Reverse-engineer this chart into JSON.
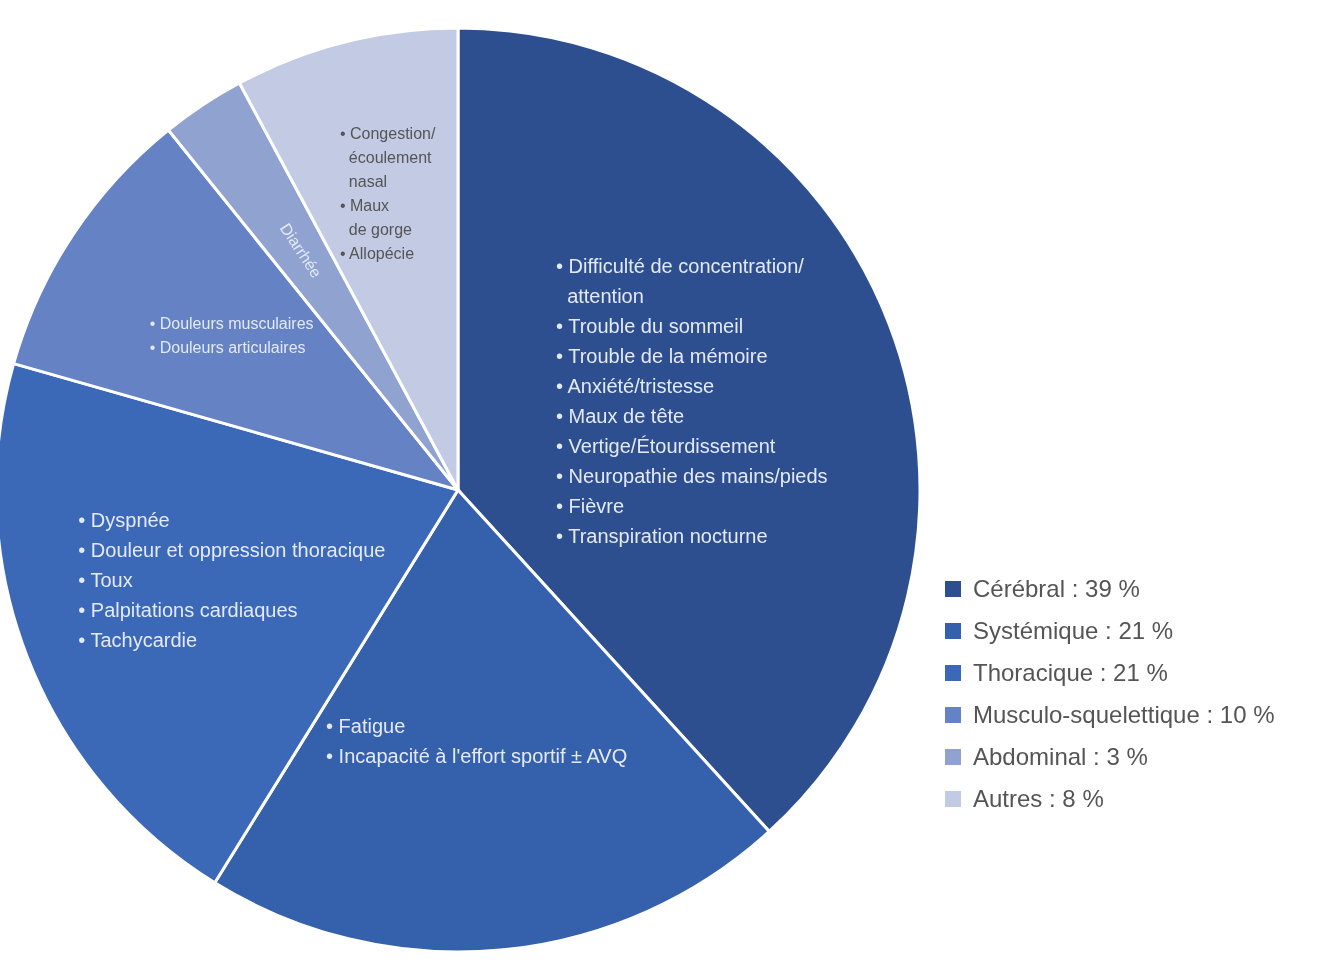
{
  "chart_data": {
    "type": "pie",
    "categories": [
      "Cérébral : 39 %",
      "Systémique : 21 %",
      "Thoracique : 21 %",
      "Musculo-squelettique : 10 %",
      "Abdominal : 3 %",
      "Autres : 8 %"
    ],
    "values": [
      39,
      21,
      21,
      10,
      3,
      8
    ],
    "colors": [
      "#2e4f8f",
      "#3560ab",
      "#3c68b8",
      "#6582c4",
      "#8fa2d0",
      "#c3cae4"
    ],
    "legend": "right",
    "annotations": [
      "• Difficulté de concentration/\n  attention\n• Trouble du sommeil\n• Trouble de la mémoire\n• Anxiété/tristesse\n• Maux de tête\n• Vertige/Étourdissement\n• Neuropathie des mains/pieds\n• Fièvre\n• Transpiration nocturne",
      "• Fatigue\n• Incapacité à l'effort sportif ± AVQ",
      "• Dyspnée\n• Douleur et oppression thoracique\n• Toux\n• Palpitations cardiaques\n• Tachycardie",
      "• Douleurs musculaires\n• Douleurs articulaires",
      "Diarrhée",
      "• Congestion/\n  écoulement\n  nasal\n• Maux\n  de gorge\n• Allopécie"
    ]
  }
}
